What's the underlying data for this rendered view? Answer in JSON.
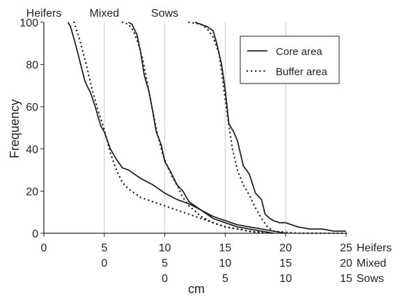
{
  "chart_data": {
    "type": "line",
    "xlabel": "cm",
    "ylabel": "Frequency",
    "ylim": [
      0,
      100
    ],
    "yticks": [
      0,
      20,
      40,
      60,
      80,
      100
    ],
    "grid": "vertical lines at x = 5, 10, 15, 20",
    "legend_position": "top-right",
    "legend": [
      {
        "name": "Core area",
        "style": "solid"
      },
      {
        "name": "Buffer area",
        "style": "dotted"
      }
    ],
    "x_axes": [
      {
        "name": "Heifers",
        "offset": 0,
        "ticks": [
          "0",
          "5",
          "10",
          "15",
          "20",
          "25"
        ]
      },
      {
        "name": "Mixed",
        "offset": 5,
        "ticks": [
          "0",
          "5",
          "10",
          "15",
          "20"
        ]
      },
      {
        "name": "Sows",
        "offset": 10,
        "ticks": [
          "0",
          "5",
          "10",
          "15"
        ]
      }
    ],
    "group_labels": [
      "Heifers",
      "Mixed",
      "Sows"
    ],
    "xlim": [
      0,
      25
    ],
    "series": [
      {
        "group": "Heifers",
        "style": "solid",
        "name": "Core area",
        "x": [
          2,
          2.2,
          2.6,
          3,
          3.4,
          3.9,
          4.3,
          4.7,
          5,
          5.5,
          6,
          6.5,
          7,
          8,
          9,
          10,
          11,
          12,
          13,
          14,
          15,
          16,
          17,
          18,
          19,
          20
        ],
        "y": [
          100,
          98,
          90,
          81,
          72,
          66,
          59,
          51,
          48,
          40,
          35,
          31,
          30,
          26,
          23,
          19,
          16,
          14,
          11,
          8,
          6,
          4,
          3,
          2,
          1,
          0
        ]
      },
      {
        "group": "Heifers",
        "style": "dotted",
        "name": "Buffer area",
        "x": [
          2.5,
          3,
          3.5,
          4,
          4.5,
          5,
          5.5,
          6,
          6.5,
          7,
          8,
          9,
          10,
          11,
          12,
          13,
          14,
          15,
          16,
          17,
          18,
          19
        ],
        "y": [
          100,
          91,
          80,
          68,
          58,
          49,
          38,
          30,
          24,
          21,
          17,
          15,
          13,
          11,
          9,
          7,
          5,
          3,
          2,
          1,
          0.5,
          0
        ]
      },
      {
        "group": "Mixed",
        "style": "solid",
        "name": "Core area",
        "x": [
          7,
          7.3,
          7.7,
          8,
          8.3,
          8.7,
          9,
          9.3,
          9.7,
          10,
          10.5,
          11,
          11.5,
          12,
          13,
          14,
          15,
          16,
          17,
          18,
          19
        ],
        "y": [
          100,
          99,
          94,
          86,
          75,
          67,
          58,
          48,
          42,
          34,
          29,
          23,
          20,
          15,
          11,
          7,
          5,
          3,
          2,
          1,
          0
        ]
      },
      {
        "group": "Mixed",
        "style": "dotted",
        "name": "Buffer area",
        "x": [
          6.5,
          7,
          7.4,
          7.8,
          8.2,
          8.6,
          9,
          9.4,
          9.8,
          10.2,
          10.6,
          11,
          11.5,
          12,
          13,
          14,
          15,
          16,
          17,
          18
        ],
        "y": [
          100,
          99,
          96,
          90,
          82,
          70,
          58,
          47,
          38,
          32,
          27,
          23,
          17,
          13,
          8,
          5,
          3,
          2,
          1,
          0
        ]
      },
      {
        "group": "Sows",
        "style": "solid",
        "name": "Core area",
        "x": [
          12.5,
          13,
          13.5,
          14,
          14.3,
          14.7,
          15,
          15.3,
          15.7,
          16,
          16.5,
          17,
          17.5,
          18,
          18.3,
          18.7,
          19,
          19.5,
          20,
          21,
          22,
          23,
          24,
          25
        ],
        "y": [
          100,
          99,
          98,
          96,
          90,
          80,
          68,
          52,
          48,
          44,
          32,
          28,
          19,
          16,
          9,
          7,
          6,
          5,
          5,
          3,
          2,
          2,
          1,
          1
        ]
      },
      {
        "group": "Sows",
        "style": "dotted",
        "name": "Buffer area",
        "x": [
          12,
          13,
          13.5,
          14,
          14.5,
          14.8,
          15.2,
          15.6,
          16,
          16.5,
          17,
          17.5,
          18,
          18.5,
          19,
          20,
          21,
          22,
          23,
          24,
          25
        ],
        "y": [
          100,
          99,
          97,
          93,
          85,
          72,
          55,
          40,
          30,
          23,
          18,
          12,
          7,
          3,
          1,
          0.5,
          0,
          0,
          0,
          0,
          0
        ]
      }
    ]
  }
}
